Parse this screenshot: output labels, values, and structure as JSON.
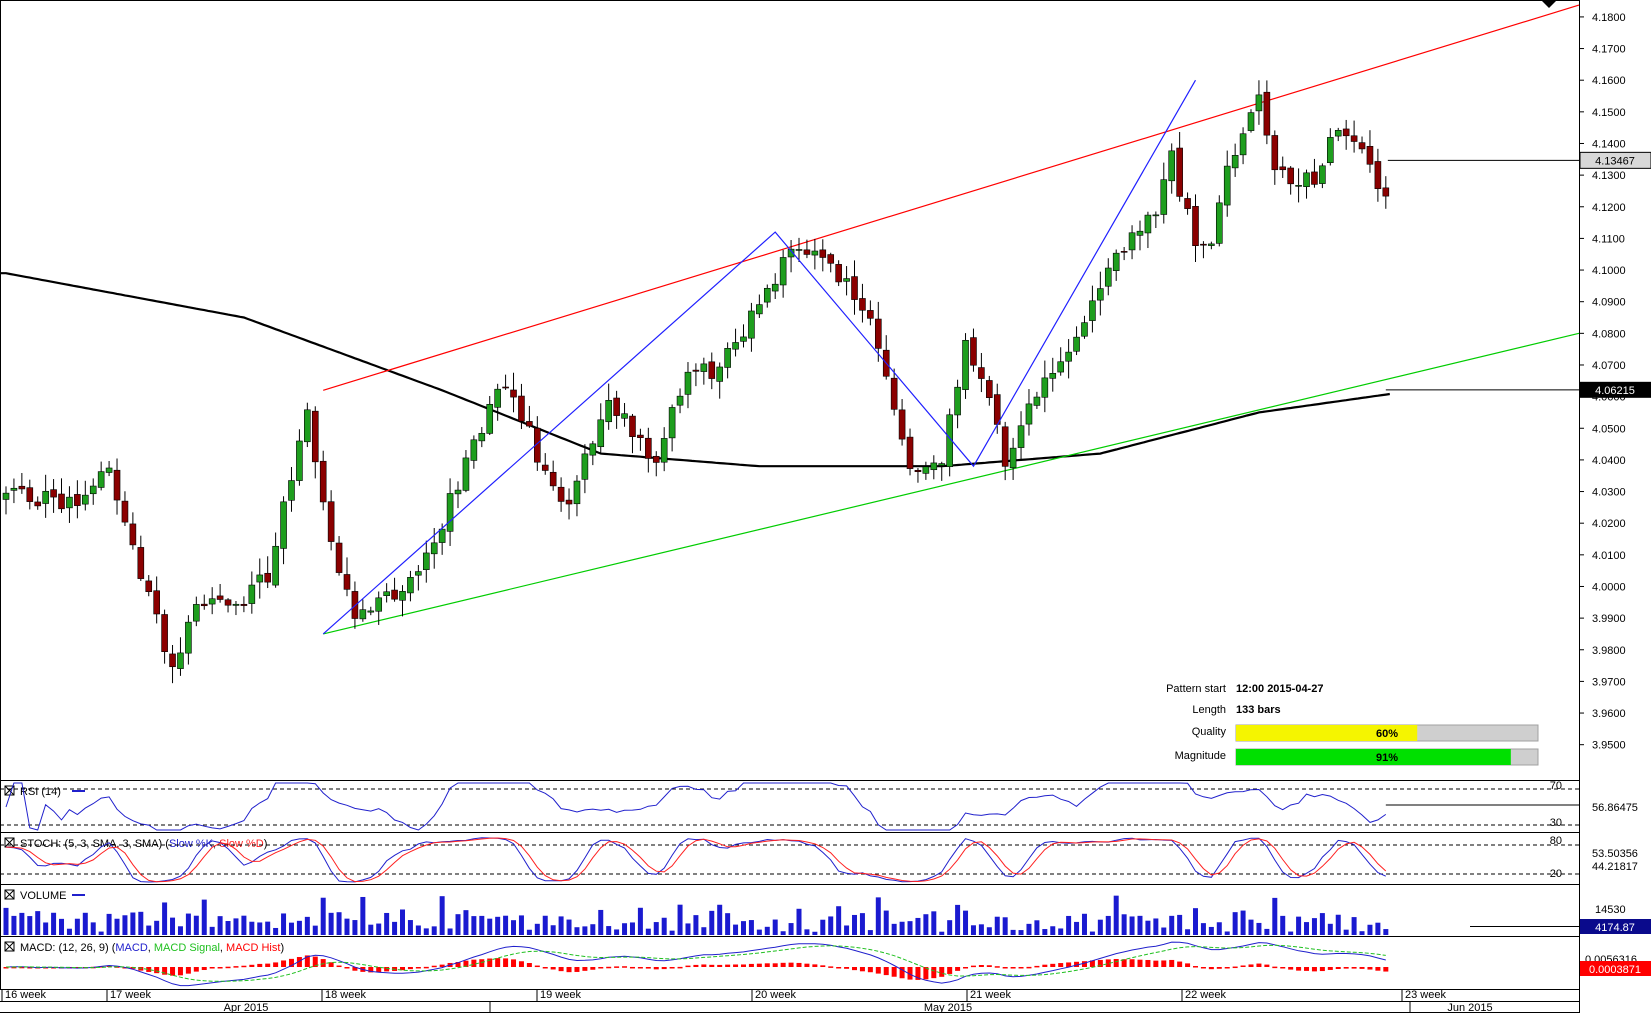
{
  "chart_data": {
    "type": "candlestick",
    "symbol_pattern": "ascending channel",
    "price_axis": {
      "ylim": [
        3.942,
        4.1825
      ],
      "ticks": [
        "4.1800",
        "4.1700",
        "4.1600",
        "4.1500",
        "4.1400",
        "4.1300",
        "4.1200",
        "4.1100",
        "4.1000",
        "4.0900",
        "4.0800",
        "4.0700",
        "4.0600",
        "4.0500",
        "4.0400",
        "4.0300",
        "4.0200",
        "4.0100",
        "4.0000",
        "3.9900",
        "3.9800",
        "3.9700",
        "3.9600",
        "3.9500"
      ],
      "last_price_label": "4.13467",
      "last_price": 4.13467,
      "ma_label": "4.06215",
      "ma_price": 4.06215
    },
    "time_axis": {
      "weeks": [
        "16 week",
        "17 week",
        "18 week",
        "19 week",
        "20 week",
        "21 week",
        "22 week",
        "23 week"
      ],
      "months": [
        "Apr 2015",
        "May 2015",
        "Jun 2015"
      ]
    },
    "bars_count": 175,
    "ohlc_seed": 20150427,
    "ohlc_key_points": [
      [
        0,
        4.029
      ],
      [
        9,
        4.027
      ],
      [
        13,
        4.038
      ],
      [
        17,
        4.005
      ],
      [
        21,
        3.972
      ],
      [
        24,
        3.996
      ],
      [
        28,
        3.992
      ],
      [
        33,
        4.003
      ],
      [
        38,
        4.056
      ],
      [
        41,
        4.015
      ],
      [
        44,
        3.988
      ],
      [
        50,
        4.0
      ],
      [
        54,
        4.015
      ],
      [
        59,
        4.045
      ],
      [
        63,
        4.065
      ],
      [
        67,
        4.042
      ],
      [
        69,
        4.032
      ],
      [
        71,
        4.025
      ],
      [
        76,
        4.06
      ],
      [
        80,
        4.045
      ],
      [
        82,
        4.04
      ],
      [
        86,
        4.07
      ],
      [
        90,
        4.068
      ],
      [
        95,
        4.09
      ],
      [
        99,
        4.107
      ],
      [
        103,
        4.105
      ],
      [
        106,
        4.095
      ],
      [
        109,
        4.082
      ],
      [
        114,
        4.039
      ],
      [
        118,
        4.04
      ],
      [
        121,
        4.076
      ],
      [
        124,
        4.061
      ],
      [
        126,
        4.038
      ],
      [
        129,
        4.058
      ],
      [
        134,
        4.075
      ],
      [
        139,
        4.1
      ],
      [
        145,
        4.12
      ],
      [
        147,
        4.135
      ],
      [
        150,
        4.108
      ],
      [
        152,
        4.108
      ],
      [
        154,
        4.133
      ],
      [
        158,
        4.155
      ],
      [
        160,
        4.13
      ],
      [
        165,
        4.128
      ],
      [
        168,
        4.145
      ],
      [
        172,
        4.135
      ],
      [
        175,
        4.115
      ],
      [
        180,
        4.124
      ],
      [
        185,
        4.134
      ]
    ],
    "moving_average": [
      [
        0,
        4.099
      ],
      [
        30,
        4.085
      ],
      [
        55,
        4.062
      ],
      [
        75,
        4.042
      ],
      [
        95,
        4.038
      ],
      [
        118,
        4.038
      ],
      [
        138,
        4.042
      ],
      [
        158,
        4.055
      ],
      [
        175,
        4.061
      ],
      [
        185,
        4.0622
      ]
    ],
    "channel": {
      "upper": {
        "from": [
          40,
          4.062
        ],
        "to": [
          200,
          4.185
        ]
      },
      "lower": {
        "from": [
          40,
          3.985
        ],
        "to": [
          200,
          4.081
        ]
      }
    },
    "zigzag": [
      [
        40,
        3.985
      ],
      [
        97,
        4.112
      ],
      [
        122,
        4.038
      ],
      [
        150,
        4.16
      ]
    ],
    "pattern_info": {
      "pattern_start_label": "Pattern start",
      "pattern_start_value": "12:00 2015-04-27",
      "length_label": "Length",
      "length_value": "133 bars",
      "quality_label": "Quality",
      "quality_value": 60,
      "quality_text": "60%",
      "magnitude_label": "Magnitude",
      "magnitude_value": 91,
      "magnitude_text": "91%"
    },
    "panels": {
      "rsi": {
        "label": "RSI (14)",
        "levels": [
          "70",
          "30"
        ],
        "value": "56.86475"
      },
      "stoch": {
        "label": "STOCH: (5, 3, SMA, 3, SMA)",
        "k_label": "Slow %K",
        "d_label": "Slow %D",
        "levels": [
          "80",
          "20"
        ],
        "value_k": "53.50356",
        "value_d": "44.21817"
      },
      "volume": {
        "label": "VOLUME",
        "tick": "14530",
        "value": "4174.87"
      },
      "macd": {
        "label": "MACD: (12, 26, 9)",
        "line_label": "MACD",
        "signal_label": "MACD Signal",
        "hist_label": "MACD Hist",
        "tick": "0.0056316",
        "value": "0.0003871"
      }
    },
    "colors": {
      "bull": "#1e9e1e",
      "bear": "#8b0000",
      "upper_channel": "#ff0000",
      "lower_channel": "#00cc00",
      "zigzag": "#2020ff",
      "ma": "#000000",
      "rsi": "#2020cc",
      "stoch_k": "#2020cc",
      "stoch_d": "#ff2020",
      "volume": "#1a1ad0",
      "macd": "#2020cc",
      "signal": "#20c020",
      "hist": "#ff0000",
      "quality": "#f5f500",
      "magnitude": "#00e000"
    }
  }
}
